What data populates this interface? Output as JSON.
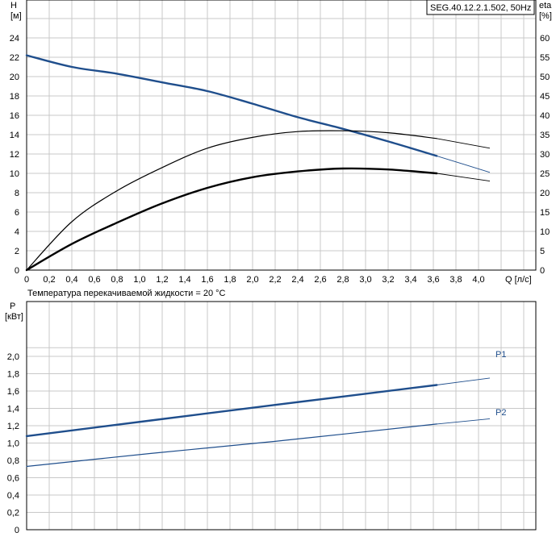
{
  "colors": {
    "blue": "#1f4e8c",
    "black": "#000000",
    "grid": "#c8c8c8"
  },
  "header": {
    "model": "SEG.40.12.2.1.502, 50Hz"
  },
  "top_chart": {
    "y_left_label": "H",
    "y_left_unit": "[м]",
    "y_right_label": "eta",
    "y_right_unit": "[%]",
    "x_label": "Q [л/с]",
    "temperature_note": "Температура перекачиваемой жидкости = 20 °C"
  },
  "bottom_chart": {
    "y_label": "P",
    "y_unit": "[кВт]",
    "p1_label": "P1",
    "p2_label": "P2"
  },
  "chart_data": [
    {
      "type": "line",
      "x_ticks": [
        "0",
        "0,2",
        "0,4",
        "0,6",
        "0,8",
        "1,0",
        "1,2",
        "1,4",
        "1,6",
        "1,8",
        "2,0",
        "2,2",
        "2,4",
        "2,6",
        "2,8",
        "3,0",
        "3,2",
        "3,4",
        "3,6",
        "3,8",
        "4,0"
      ],
      "y_left_ticks": [
        "0",
        "2",
        "4",
        "6",
        "8",
        "10",
        "12",
        "14",
        "16",
        "18",
        "20",
        "22",
        "24"
      ],
      "y_right_ticks": [
        "0",
        "5",
        "10",
        "15",
        "20",
        "25",
        "30",
        "35",
        "40",
        "45",
        "50",
        "55",
        "60"
      ],
      "xlim": [
        0,
        4.5
      ],
      "ylim_left": [
        0,
        26
      ],
      "ylim_right": [
        0,
        65
      ],
      "grid": true,
      "series": [
        {
          "name": "H",
          "axis": "left",
          "color": "#1f4e8c",
          "operating_end_x": 3.63,
          "x": [
            0,
            0.4,
            0.8,
            1.2,
            1.6,
            2.0,
            2.4,
            2.8,
            3.2,
            3.63,
            4.1
          ],
          "y": [
            22.2,
            21.0,
            20.3,
            19.4,
            18.5,
            17.2,
            15.8,
            14.6,
            13.3,
            11.8,
            10.1
          ]
        },
        {
          "name": "eta",
          "axis": "right",
          "color": "#000000",
          "operating_end_x": 3.63,
          "x": [
            0,
            0.4,
            0.8,
            1.2,
            1.6,
            2.0,
            2.4,
            2.8,
            3.2,
            3.63,
            4.1
          ],
          "y": [
            0,
            12.5,
            20.5,
            26.5,
            31.5,
            34.3,
            35.8,
            36.0,
            35.5,
            34.0,
            31.5
          ]
        },
        {
          "name": "eta2",
          "axis": "left",
          "color": "#000000",
          "operating_end_x": 3.63,
          "x": [
            0,
            0.4,
            0.8,
            1.2,
            1.6,
            2.0,
            2.4,
            2.8,
            3.2,
            3.63,
            4.1
          ],
          "y": [
            0,
            2.7,
            4.9,
            6.9,
            8.5,
            9.6,
            10.2,
            10.5,
            10.4,
            10.0,
            9.2
          ]
        }
      ]
    },
    {
      "type": "line",
      "y_ticks": [
        "0",
        "0,2",
        "0,4",
        "0,6",
        "0,8",
        "1,0",
        "1,2",
        "1,4",
        "1,6",
        "1,8",
        "2,0"
      ],
      "xlim": [
        0,
        4.5
      ],
      "ylim": [
        0,
        2.2
      ],
      "grid": true,
      "series": [
        {
          "name": "P1",
          "color": "#1f4e8c",
          "operating_end_x": 3.63,
          "x": [
            0,
            1.1,
            2.2,
            3.63,
            4.1
          ],
          "y": [
            1.08,
            1.26,
            1.44,
            1.67,
            1.75
          ]
        },
        {
          "name": "P2",
          "color": "#1f4e8c",
          "operating_end_x": 3.63,
          "x": [
            0,
            1.1,
            2.2,
            3.63,
            4.1
          ],
          "y": [
            0.73,
            0.88,
            1.02,
            1.22,
            1.28
          ]
        }
      ]
    }
  ]
}
